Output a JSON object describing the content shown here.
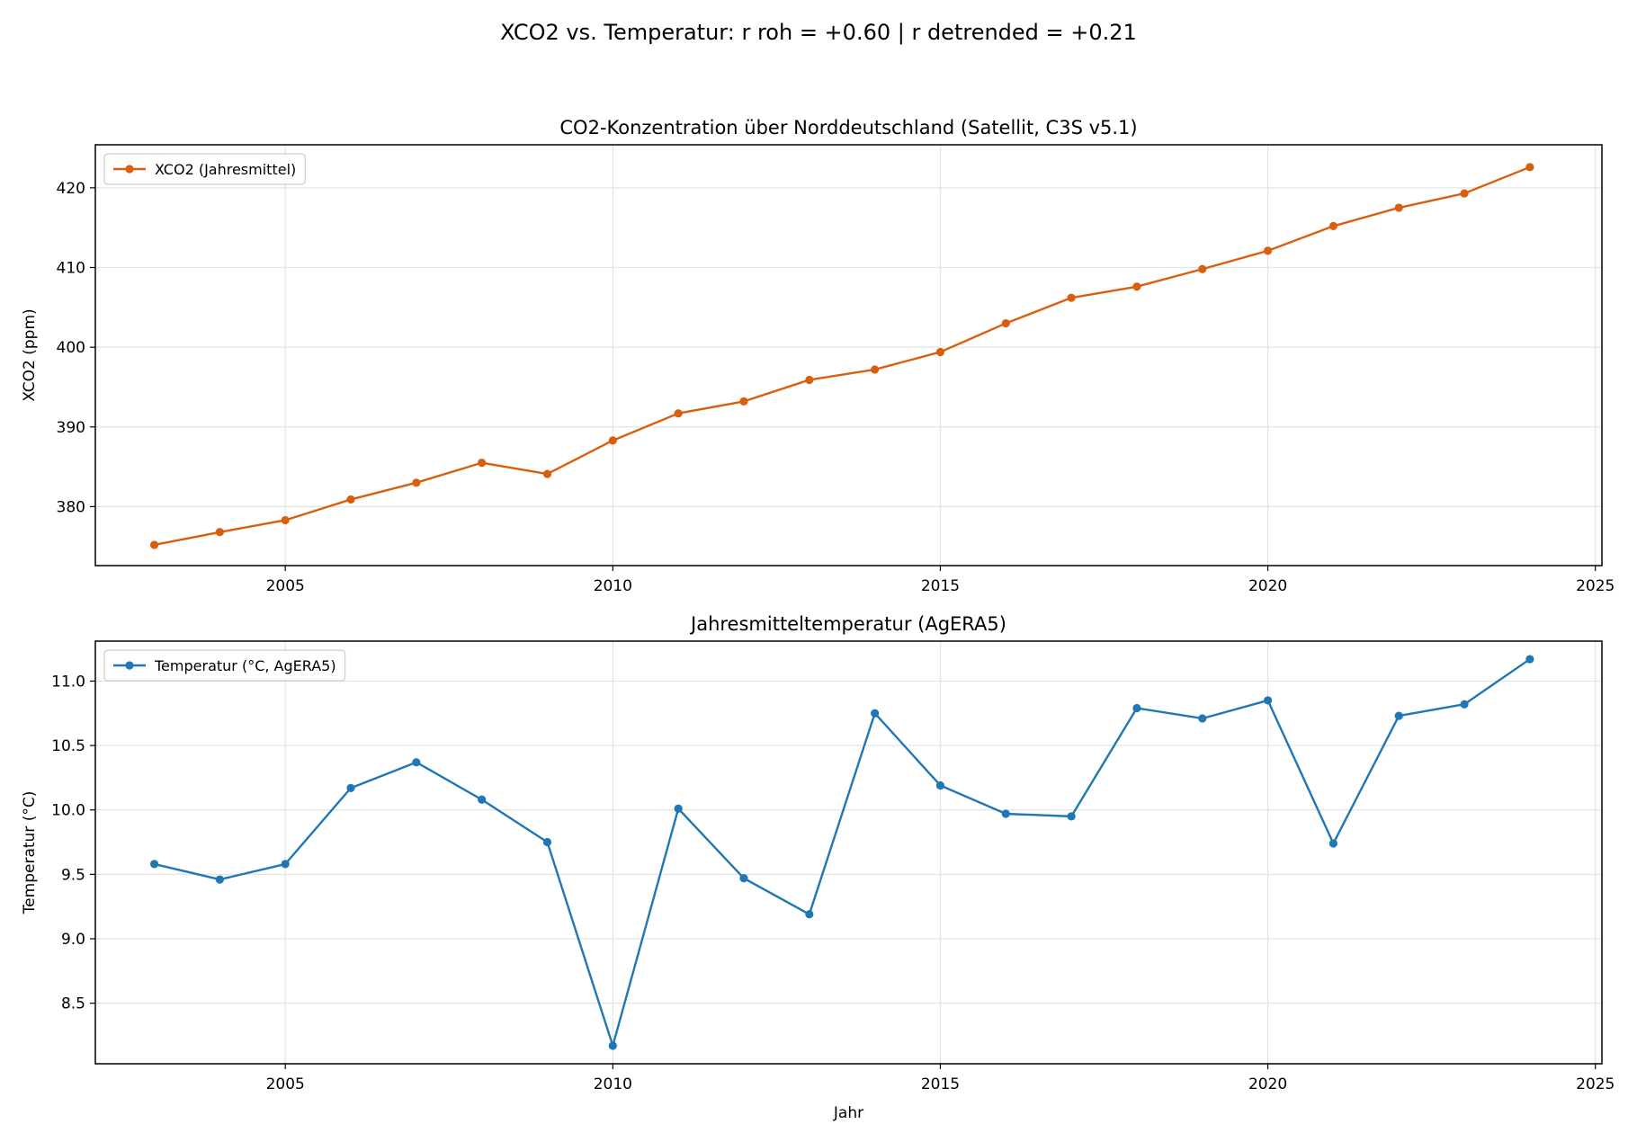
{
  "figure": {
    "suptitle": "XCO2 vs. Temperatur: r roh = +0.60 | r detrended = +0.21"
  },
  "chart_data": [
    {
      "type": "line",
      "title": "CO2-Konzentration über Norddeutschland (Satellit, C3S v5.1)",
      "xlabel": "",
      "ylabel": "XCO2 (ppm)",
      "xlim": [
        2002.1,
        2025.1
      ],
      "ylim": [
        372.6,
        425.4
      ],
      "xticks": [
        2005,
        2010,
        2015,
        2020,
        2025
      ],
      "yticks": [
        380,
        390,
        400,
        410,
        420
      ],
      "grid": true,
      "legend_position": "upper-left",
      "series": [
        {
          "name": "XCO2 (Jahresmittel)",
          "color": "#d95f0e",
          "x": [
            2003,
            2004,
            2005,
            2006,
            2007,
            2008,
            2009,
            2010,
            2011,
            2012,
            2013,
            2014,
            2015,
            2016,
            2017,
            2018,
            2019,
            2020,
            2021,
            2022,
            2023,
            2024
          ],
          "values": [
            375.2,
            376.8,
            378.3,
            380.9,
            383.0,
            385.5,
            384.1,
            388.3,
            391.7,
            393.2,
            395.9,
            397.2,
            399.4,
            403.0,
            406.2,
            407.6,
            409.8,
            412.1,
            415.2,
            417.5,
            419.3,
            422.6
          ]
        }
      ]
    },
    {
      "type": "line",
      "title": "Jahresmitteltemperatur (AgERA5)",
      "xlabel": "Jahr",
      "ylabel": "Temperatur (°C)",
      "xlim": [
        2002.1,
        2025.1
      ],
      "ylim": [
        8.03,
        11.31
      ],
      "xticks": [
        2005,
        2010,
        2015,
        2020,
        2025
      ],
      "yticks": [
        8.5,
        9.0,
        9.5,
        10.0,
        10.5,
        11.0
      ],
      "ytick_labels": [
        "8.5",
        "9.0",
        "9.5",
        "10.0",
        "10.5",
        "11.0"
      ],
      "grid": true,
      "legend_position": "upper-left",
      "series": [
        {
          "name": "Temperatur (°C, AgERA5)",
          "color": "#1f77b4",
          "x": [
            2003,
            2004,
            2005,
            2006,
            2007,
            2008,
            2009,
            2010,
            2011,
            2012,
            2013,
            2014,
            2015,
            2016,
            2017,
            2018,
            2019,
            2020,
            2021,
            2022,
            2023,
            2024
          ],
          "values": [
            9.58,
            9.46,
            9.58,
            10.17,
            10.37,
            10.08,
            9.75,
            8.17,
            10.01,
            9.47,
            9.19,
            10.75,
            10.19,
            9.97,
            9.95,
            10.79,
            10.71,
            10.85,
            9.74,
            10.73,
            10.82,
            11.17
          ]
        }
      ]
    }
  ]
}
